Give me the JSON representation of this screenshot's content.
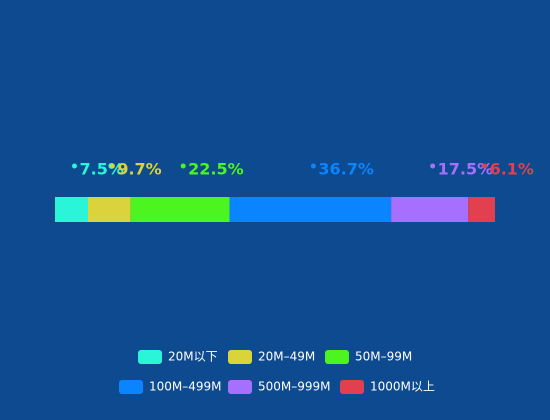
{
  "chart_data": {
    "type": "bar",
    "orientation": "horizontal",
    "stacked": true,
    "categories": [
      null
    ],
    "xlim": [
      0,
      100
    ],
    "series": [
      {
        "name": "20M以下",
        "color": "#2af5d8",
        "values": [
          7.5
        ],
        "value_labels": [
          "7.5%"
        ]
      },
      {
        "name": "20M–49M",
        "color": "#dbd33b",
        "values": [
          9.7
        ],
        "value_labels": [
          "9.7%"
        ]
      },
      {
        "name": "50M–99M",
        "color": "#4cf51f",
        "values": [
          22.5
        ],
        "value_labels": [
          "22.5%"
        ]
      },
      {
        "name": "100M–499M",
        "color": "#0a84ff",
        "values": [
          36.7
        ],
        "value_labels": [
          "36.7%"
        ]
      },
      {
        "name": "500M–999M",
        "color": "#a66ffe",
        "values": [
          17.5
        ],
        "value_labels": [
          "17.5%"
        ]
      },
      {
        "name": "1000M以上",
        "color": "#e2404f",
        "values": [
          6.1
        ],
        "value_labels": [
          "6.1%"
        ]
      }
    ]
  }
}
